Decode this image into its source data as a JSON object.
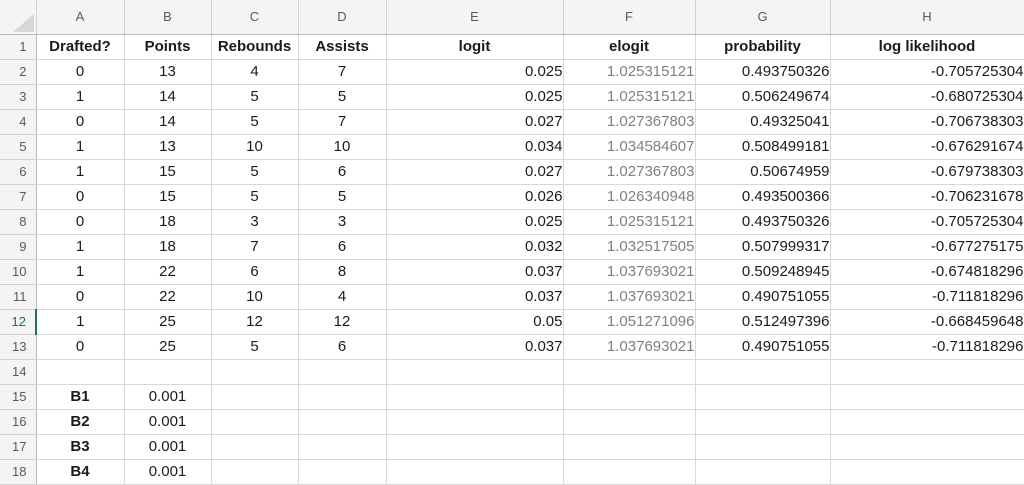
{
  "app": {
    "type": "spreadsheet"
  },
  "colors": {
    "accent_green": "#217346",
    "header_bg": "#f4f4f4",
    "gridline": "#d8d8d8",
    "muted_column_text": "#808080"
  },
  "sheet": {
    "column_headers": [
      "A",
      "B",
      "C",
      "D",
      "E",
      "F",
      "G",
      "H"
    ],
    "row_headers": [
      "1",
      "2",
      "3",
      "4",
      "5",
      "6",
      "7",
      "8",
      "9",
      "10",
      "11",
      "12",
      "13",
      "14",
      "15",
      "16",
      "17",
      "18"
    ],
    "active_row": "12",
    "field_headers": [
      "Drafted?",
      "Points",
      "Rebounds",
      "Assists",
      "logit",
      "elogit",
      "probability",
      "log likelihood"
    ],
    "rows": [
      [
        "Drafted?",
        "Points",
        "Rebounds",
        "Assists",
        "logit",
        "elogit",
        "probability",
        "log likelihood"
      ],
      [
        "0",
        "13",
        "4",
        "7",
        "0.025",
        "1.025315121",
        "0.493750326",
        "-0.705725304"
      ],
      [
        "1",
        "14",
        "5",
        "5",
        "0.025",
        "1.025315121",
        "0.506249674",
        "-0.680725304"
      ],
      [
        "0",
        "14",
        "5",
        "7",
        "0.027",
        "1.027367803",
        "0.49325041",
        "-0.706738303"
      ],
      [
        "1",
        "13",
        "10",
        "10",
        "0.034",
        "1.034584607",
        "0.508499181",
        "-0.676291674"
      ],
      [
        "1",
        "15",
        "5",
        "6",
        "0.027",
        "1.027367803",
        "0.50674959",
        "-0.679738303"
      ],
      [
        "0",
        "15",
        "5",
        "5",
        "0.026",
        "1.026340948",
        "0.493500366",
        "-0.706231678"
      ],
      [
        "0",
        "18",
        "3",
        "3",
        "0.025",
        "1.025315121",
        "0.493750326",
        "-0.705725304"
      ],
      [
        "1",
        "18",
        "7",
        "6",
        "0.032",
        "1.032517505",
        "0.507999317",
        "-0.677275175"
      ],
      [
        "1",
        "22",
        "6",
        "8",
        "0.037",
        "1.037693021",
        "0.509248945",
        "-0.674818296"
      ],
      [
        "0",
        "22",
        "10",
        "4",
        "0.037",
        "1.037693021",
        "0.490751055",
        "-0.711818296"
      ],
      [
        "1",
        "25",
        "12",
        "12",
        "0.05",
        "1.051271096",
        "0.512497396",
        "-0.668459648"
      ],
      [
        "0",
        "25",
        "5",
        "6",
        "0.037",
        "1.037693021",
        "0.490751055",
        "-0.711818296"
      ],
      [
        "",
        "",
        "",
        "",
        "",
        "",
        "",
        ""
      ],
      [
        "B1",
        "0.001",
        "",
        "",
        "",
        "",
        "",
        ""
      ],
      [
        "B2",
        "0.001",
        "",
        "",
        "",
        "",
        "",
        ""
      ],
      [
        "B3",
        "0.001",
        "",
        "",
        "",
        "",
        "",
        ""
      ],
      [
        "B4",
        "0.001",
        "",
        "",
        "",
        "",
        "",
        ""
      ]
    ]
  }
}
